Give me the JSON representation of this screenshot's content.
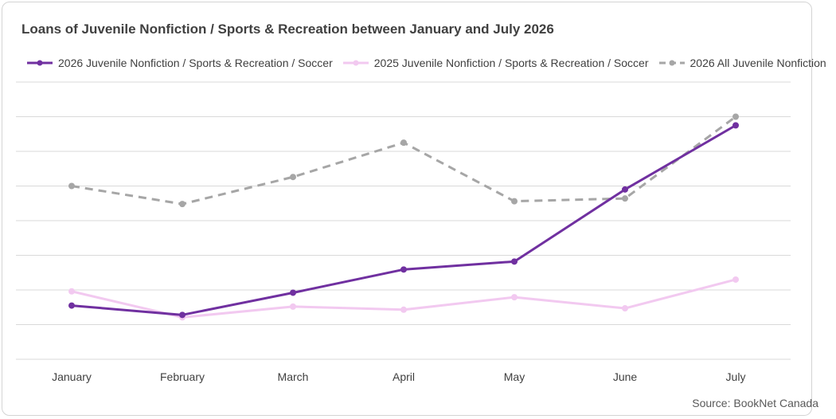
{
  "source": "Source: BookNet Canada",
  "colors": {
    "s2026": "#7030a0",
    "s2025": "#f2c9f0",
    "sAll": "#a6a6a6",
    "grid": "#d9d9d9"
  },
  "chart_data": {
    "type": "line",
    "title": "Loans of Juvenile Nonfiction / Sports & Recreation between January and July 2026",
    "xlabel": "",
    "ylabel": "",
    "grid": true,
    "legend_position": "top",
    "categories": [
      "January",
      "February",
      "March",
      "April",
      "May",
      "June",
      "July"
    ],
    "ylim": [
      0,
      8
    ],
    "series": [
      {
        "name": "2026 Juvenile Nonfiction / Sports & Recreation / Soccer",
        "color": "#7030a0",
        "dashed": false,
        "values": [
          1.55,
          1.28,
          1.92,
          2.59,
          2.82,
          4.9,
          6.75
        ]
      },
      {
        "name": "2025 Juvenile Nonfiction / Sports & Recreation / Soccer",
        "color": "#f2c9f0",
        "dashed": false,
        "values": [
          1.96,
          1.21,
          1.52,
          1.43,
          1.79,
          1.47,
          2.3
        ]
      },
      {
        "name": "2026 All Juvenile Nonfiction",
        "color": "#a6a6a6",
        "dashed": true,
        "values": [
          5.0,
          4.48,
          5.26,
          6.25,
          4.56,
          4.64,
          7.0
        ]
      }
    ]
  }
}
